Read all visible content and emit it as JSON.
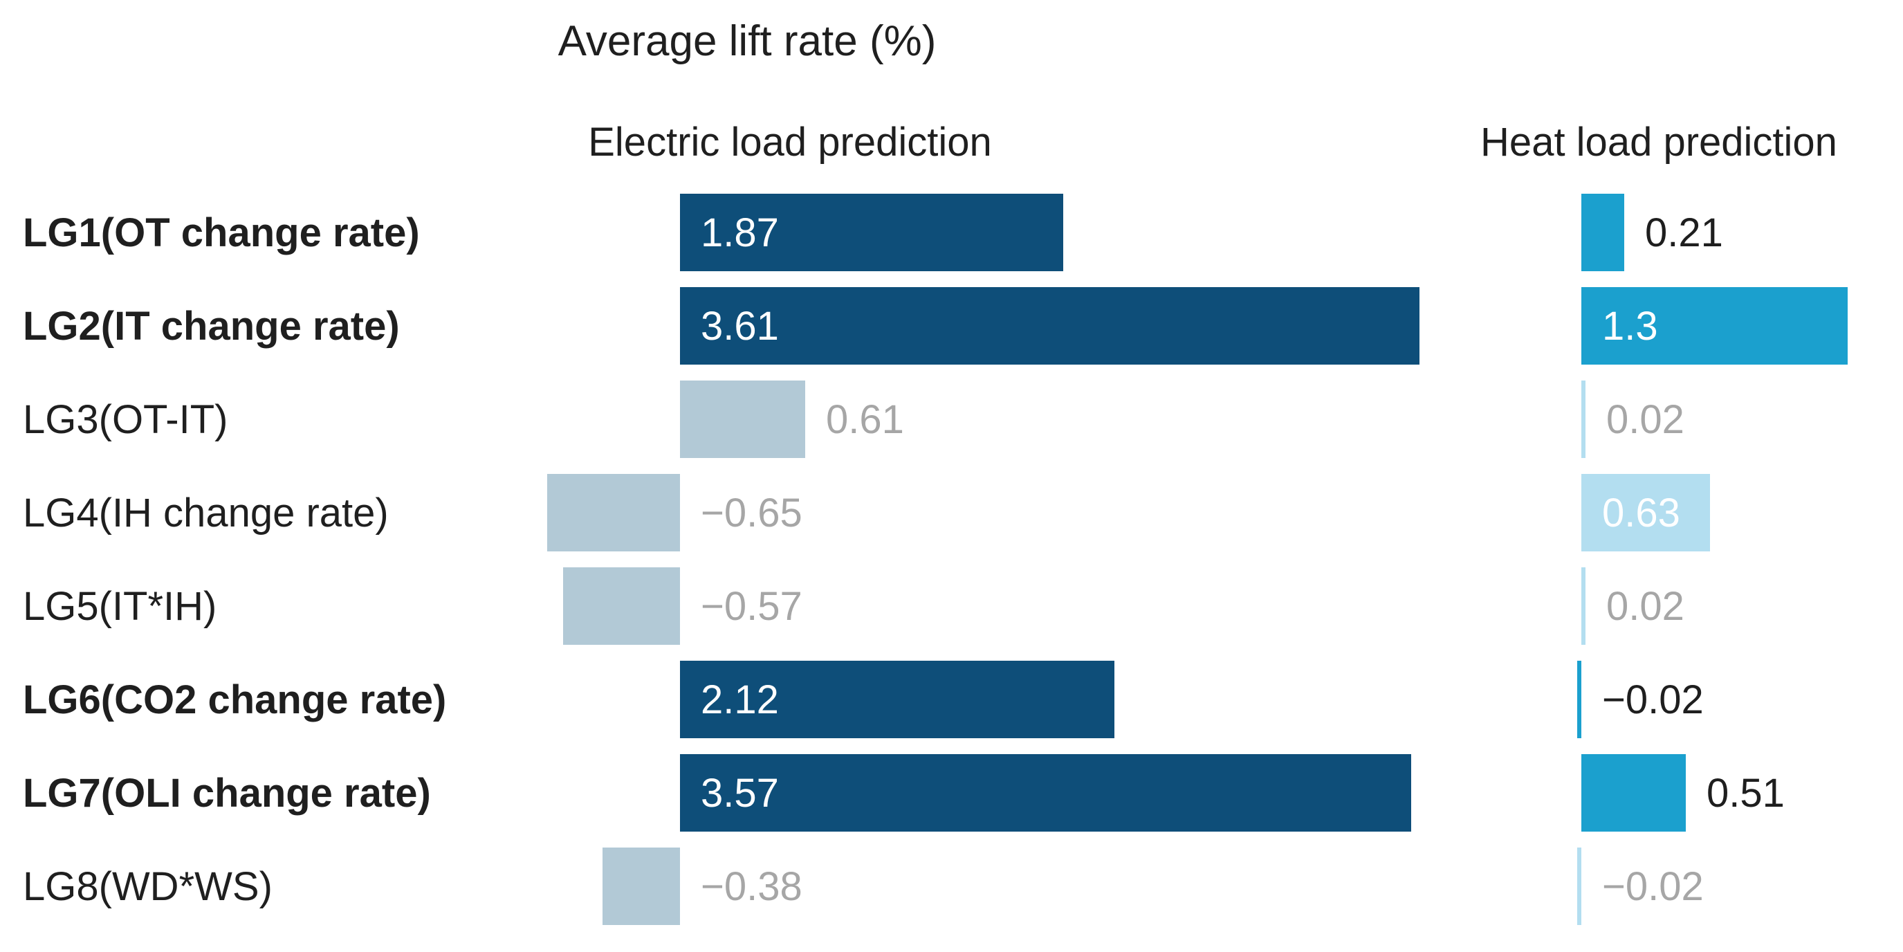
{
  "chart_data": {
    "type": "bar",
    "orientation": "horizontal",
    "title": "Average lift rate (%)",
    "value_unit": "%",
    "categories": [
      "LG1(OT change rate)",
      "LG2(IT change rate)",
      "LG3(OT-IT)",
      "LG4(IH change rate)",
      "LG5(IT*IH)",
      "LG6(CO2 change rate)",
      "LG7(OLI change rate)",
      "LG8(WD*WS)"
    ],
    "emphasized_categories": [
      true,
      true,
      false,
      false,
      false,
      true,
      true,
      false
    ],
    "series": [
      {
        "name": "Electric load prediction",
        "values": [
          1.87,
          3.61,
          0.61,
          -0.65,
          -0.57,
          2.12,
          3.57,
          -0.38
        ],
        "value_labels": [
          "1.87",
          "3.61",
          "0.61",
          "−0.65",
          "−0.57",
          "2.12",
          "3.57",
          "−0.38"
        ],
        "bar_styles": [
          "dark",
          "dark",
          "muted",
          "muted",
          "muted",
          "dark",
          "dark",
          "muted"
        ],
        "label_styles": [
          "inside-white",
          "inside-white",
          "outside-gray",
          "outside-gray",
          "outside-gray",
          "inside-white",
          "inside-white",
          "outside-gray"
        ]
      },
      {
        "name": "Heat load prediction",
        "values": [
          0.21,
          1.3,
          0.02,
          0.63,
          0.02,
          -0.02,
          0.51,
          -0.02
        ],
        "value_labels": [
          "0.21",
          "1.3",
          "0.02",
          "0.63",
          "0.02",
          "−0.02",
          "0.51",
          "−0.02"
        ],
        "bar_styles": [
          "accent",
          "accent",
          "accent_light",
          "accent_light",
          "accent_light",
          "accent",
          "accent",
          "accent_light"
        ],
        "label_styles": [
          "outside-dark",
          "inside-white",
          "outside-gray",
          "inside-white",
          "outside-gray",
          "outside-dark",
          "outside-dark",
          "outside-gray"
        ]
      }
    ],
    "colors": {
      "dark": "#0E4E79",
      "muted": "#B2C9D6",
      "accent": "#1BA0CE",
      "accent_light": "#B3DEF0",
      "text_dark": "#1E1E1E",
      "text_gray": "#A6A6A6",
      "text_white": "#FFFFFF"
    },
    "axis": {
      "shared_scale": true,
      "gridlines": false,
      "value_range_shown": [
        -0.65,
        3.61
      ]
    }
  }
}
